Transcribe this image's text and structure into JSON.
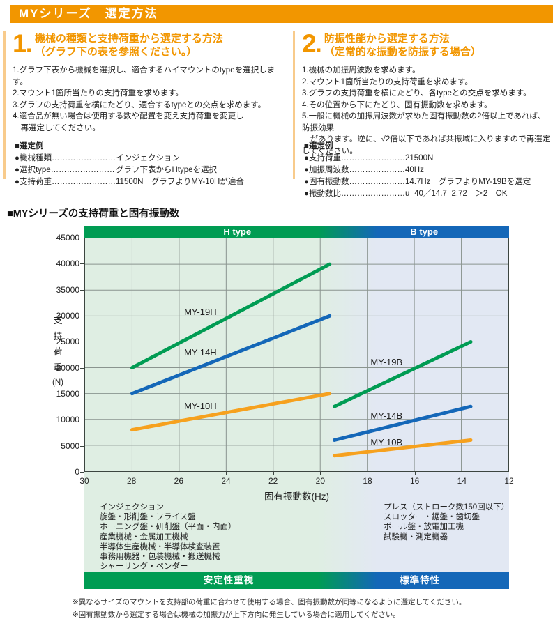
{
  "header": {
    "title": "MYシリーズ　選定方法"
  },
  "sections": [
    {
      "number": "1.",
      "title_line1": "機械の種類と支持荷重から選定する方法",
      "title_line2": "（グラフ下の表を参照ください。）",
      "steps": [
        "1.グラフ下表から機械を選択し、適合するハイマウントのtypeを選択します。",
        "2.マウント1箇所当たりの支持荷重を求めます。",
        "3.グラフの支持荷重を横にたどり、適合するtypeとの交点を求めます。",
        "4.適合品が無い場合は使用する数や配置を変え支持荷重を変更し",
        "　再選定してください。"
      ],
      "example_title": "■選定例",
      "example_rows": [
        {
          "label": "●機械種類",
          "value": "インジェクション"
        },
        {
          "label": "●選択type",
          "value": "グラフ下表からHtypeを選択"
        },
        {
          "label": "●支持荷重",
          "value": "11500N　グラフよりMY-10Hが適合"
        }
      ]
    },
    {
      "number": "2.",
      "title_line1": "防振性能から選定する方法",
      "title_line2": "（定常的な振動を防振する場合）",
      "steps": [
        "1.機械の加振周波数を求めます。",
        "2.マウント1箇所当たりの支持荷重を求めます。",
        "3.グラフの支持荷重を横にたどり、各typeとの交点を求めます。",
        "4.その位置から下にたどり、固有振動数を求めます。",
        "5.一般に機械の加振周波数が求めた固有振動数の2倍以上であれば、防振効果",
        "　があります。逆に、√2倍以下であれば共振域に入りますので再選定してください。"
      ],
      "example_title": "■選定例",
      "example_rows": [
        {
          "label": "●支持荷重",
          "value": "21500N"
        },
        {
          "label": "●加振周波数",
          "value": "40Hz"
        },
        {
          "label": "●固有振動数",
          "value": "14.7Hz　グラフよりMY-19Bを選定"
        },
        {
          "label": "●振動数比",
          "value": "u=40／14.7=2.72　＞2　OK"
        }
      ]
    }
  ],
  "chart": {
    "section_title": "■MYシリーズの支持荷重と固有振動数",
    "h_type_label": "H type",
    "b_type_label": "B type",
    "y_axis_chars": [
      "支",
      "持",
      "荷",
      "重"
    ],
    "y_axis_unit": "(N)",
    "x_axis_label": "固有振動数(Hz)",
    "bottom_left_label": "安定性重視",
    "bottom_right_label": "標準特性",
    "left_machines": [
      "インジェクション",
      "旋盤・形削盤・フライス盤",
      "ホーニング盤・研削盤（平面・内面）",
      "産業機械・金属加工機械",
      "半導体生産機械・半導体検査装置",
      "事務用機器・包装機械・搬送機械",
      "シャーリング・ベンダー"
    ],
    "right_machines": [
      "プレス（ストローク数150回以下）",
      "スロッター・鋸盤・歯切盤",
      "ボール盤・放電加工機",
      "試験機・測定機器"
    ],
    "colors": {
      "accent_orange": "#f29600",
      "h_green": "#009c53",
      "b_blue": "#1467b8",
      "line_orange": "#f6a11e",
      "bg_green": "#dfeee3",
      "bg_blue": "#e2e8f3",
      "grid": "#8a948f"
    }
  },
  "chart_data": {
    "type": "line",
    "title": "MYシリーズの支持荷重と固有振動数",
    "xlabel": "固有振動数(Hz)",
    "ylabel": "支持荷重(N)",
    "x_axis": {
      "min": 12,
      "max": 30,
      "reversed": true,
      "ticks": [
        30,
        28,
        26,
        24,
        22,
        20,
        18,
        16,
        14,
        12
      ]
    },
    "y_axis": {
      "min": 0,
      "max": 45000,
      "ticks": [
        0,
        5000,
        10000,
        15000,
        20000,
        25000,
        30000,
        35000,
        40000,
        45000
      ]
    },
    "grid": true,
    "series": [
      {
        "name": "MY-19H",
        "color": "#009c53",
        "points": [
          [
            28,
            20000
          ],
          [
            19.6,
            40000
          ]
        ],
        "label_hz": 25.8,
        "label_n": 31900
      },
      {
        "name": "MY-14H",
        "color": "#1467b8",
        "points": [
          [
            28,
            15000
          ],
          [
            19.6,
            30000
          ]
        ],
        "label_hz": 25.8,
        "label_n": 24100
      },
      {
        "name": "MY-10H",
        "color": "#f6a11e",
        "points": [
          [
            28,
            8000
          ],
          [
            19.6,
            15000
          ]
        ],
        "label_hz": 25.8,
        "label_n": 13800
      },
      {
        "name": "MY-19B",
        "color": "#009c53",
        "points": [
          [
            19.4,
            12500
          ],
          [
            13.6,
            25000
          ]
        ],
        "label_hz": 17.9,
        "label_n": 22200
      },
      {
        "name": "MY-14B",
        "color": "#1467b8",
        "points": [
          [
            19.4,
            6000
          ],
          [
            13.6,
            12500
          ]
        ],
        "label_hz": 17.9,
        "label_n": 11900
      },
      {
        "name": "MY-10B",
        "color": "#f6a11e",
        "points": [
          [
            19.4,
            3000
          ],
          [
            13.6,
            6000
          ]
        ],
        "label_hz": 17.9,
        "label_n": 6800
      }
    ]
  },
  "footnotes": [
    "※異なるサイズのマウントを支持部の荷重に合わせて使用する場合、固有振動数が同等になるように選定してください。",
    "※固有振動数から選定する場合は機械の加振力が上下方向に発生している場合に適用してください。"
  ]
}
